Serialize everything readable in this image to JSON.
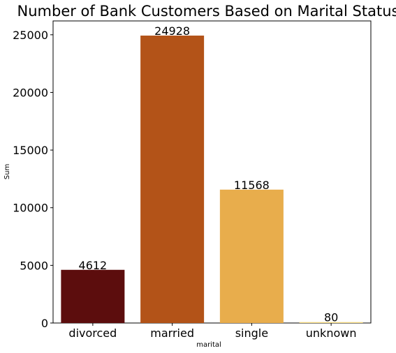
{
  "chart_data": {
    "type": "bar",
    "title": "Number of Bank Customers Based on Marital Status",
    "xlabel": "marital",
    "ylabel": "Sum",
    "categories": [
      "divorced",
      "married",
      "single",
      "unknown"
    ],
    "values": [
      4612,
      24928,
      11568,
      80
    ],
    "data_labels": [
      "4612",
      "24928",
      "11568",
      "80"
    ],
    "colors": [
      "#5c0d0d",
      "#b35318",
      "#e8ad4c",
      "#f7dc84"
    ],
    "ylim": [
      0,
      26200
    ],
    "yticks": [
      0,
      5000,
      10000,
      15000,
      20000,
      25000
    ],
    "ytick_labels": [
      "0",
      "5000",
      "10000",
      "15000",
      "20000",
      "25000"
    ],
    "grid": false,
    "legend": "none"
  }
}
